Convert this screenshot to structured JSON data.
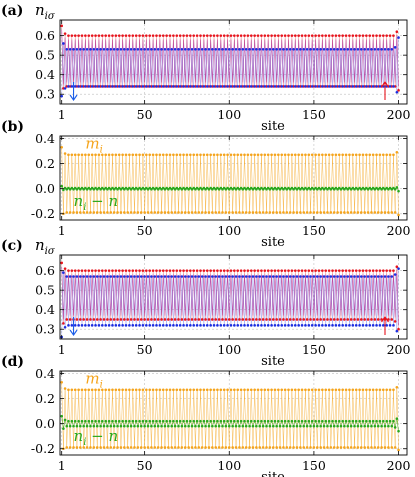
{
  "figure": {
    "panels": [
      "(a)",
      "(b)",
      "(c)",
      "(d)"
    ],
    "xlabel": "site",
    "y_symbol_n": "n",
    "y_symbol_n_sub": "iσ",
    "label_m": "m",
    "label_m_sub": "i",
    "label_diff_n": "n",
    "label_diff_sub": "i",
    "label_diff_rest": " − n"
  },
  "colors": {
    "up": "#e8141c",
    "down": "#1c2ee0",
    "avg": "#9a4bd6",
    "m": "#f5a41c",
    "diff": "#2aa81e",
    "grid": "#c9c9c9",
    "arrow_red": "#e8141c",
    "arrow_blue": "#1c5ee8"
  },
  "chart_data": [
    {
      "panel": "(a)",
      "type": "scatter",
      "xlabel": "site",
      "ylabel": "n_iσ",
      "xlim": [
        0,
        205
      ],
      "ylim": [
        0.25,
        0.68
      ],
      "xticks": [
        1,
        50,
        100,
        150,
        200
      ],
      "yticks": [
        0.3,
        0.4,
        0.5,
        0.6
      ],
      "n_sites": 200,
      "series": [
        {
          "role": "up",
          "upper_bulk": 0.6,
          "lower_bulk": 0.34,
          "upper_edge": [
            0.65,
            0.62,
            0.61
          ],
          "lower_edge": [
            0.32,
            0.33,
            0.34
          ]
        },
        {
          "role": "down",
          "upper_bulk": 0.53,
          "lower_bulk": 0.34,
          "upper_edge": [
            0.59,
            0.56,
            0.54
          ],
          "lower_edge": [
            0.29,
            0.31,
            0.33
          ]
        }
      ],
      "arrows": [
        {
          "site": 8,
          "direction": "down",
          "color": "blue"
        },
        {
          "site": 192,
          "direction": "up",
          "color": "red"
        }
      ]
    },
    {
      "panel": "(b)",
      "type": "scatter",
      "xlabel": "site",
      "ylim": [
        -0.25,
        0.42
      ],
      "xticks": [
        1,
        50,
        100,
        150,
        200
      ],
      "yticks": [
        -0.2,
        0.0,
        0.2,
        0.4
      ],
      "n_sites": 200,
      "series": [
        {
          "role": "m_i",
          "upper_bulk": 0.27,
          "lower_bulk": -0.19,
          "upper_edge": [
            0.33,
            0.29,
            0.28
          ],
          "lower_edge": [
            -0.21,
            -0.2,
            -0.19
          ]
        },
        {
          "role": "n_i - n",
          "upper_bulk": 0.005,
          "lower_bulk": -0.005,
          "upper_edge": [
            0.02,
            0.01,
            0.005
          ],
          "lower_edge": [
            -0.02,
            -0.01,
            -0.005
          ]
        }
      ]
    },
    {
      "panel": "(c)",
      "type": "scatter",
      "xlabel": "site",
      "ylabel": "n_iσ",
      "xlim": [
        0,
        205
      ],
      "ylim": [
        0.25,
        0.68
      ],
      "xticks": [
        1,
        50,
        100,
        150,
        200
      ],
      "yticks": [
        0.3,
        0.4,
        0.5,
        0.6
      ],
      "n_sites": 200,
      "series": [
        {
          "role": "up",
          "upper_bulk": 0.6,
          "lower_bulk": 0.35,
          "upper_edge": [
            0.64,
            0.62,
            0.61
          ],
          "lower_edge": [
            0.3,
            0.33,
            0.34
          ]
        },
        {
          "role": "down",
          "upper_bulk": 0.57,
          "lower_bulk": 0.32,
          "upper_edge": [
            0.61,
            0.59,
            0.58
          ],
          "lower_edge": [
            0.26,
            0.29,
            0.31
          ]
        }
      ],
      "arrows": [
        {
          "site": 8,
          "direction": "down",
          "color": "blue"
        },
        {
          "site": 192,
          "direction": "up",
          "color": "red"
        }
      ]
    },
    {
      "panel": "(d)",
      "type": "scatter",
      "xlabel": "site",
      "ylim": [
        -0.25,
        0.42
      ],
      "xticks": [
        1,
        50,
        100,
        150,
        200
      ],
      "yticks": [
        -0.2,
        0.0,
        0.2,
        0.4
      ],
      "n_sites": 200,
      "series": [
        {
          "role": "m_i",
          "upper_bulk": 0.27,
          "lower_bulk": -0.19,
          "upper_edge": [
            0.33,
            0.29,
            0.28
          ],
          "lower_edge": [
            -0.21,
            -0.2,
            -0.19
          ]
        },
        {
          "role": "n_i - n",
          "upper_bulk": 0.02,
          "lower_bulk": -0.02,
          "upper_edge": [
            0.06,
            0.04,
            0.03
          ],
          "lower_edge": [
            -0.06,
            -0.04,
            -0.03
          ]
        }
      ]
    }
  ]
}
